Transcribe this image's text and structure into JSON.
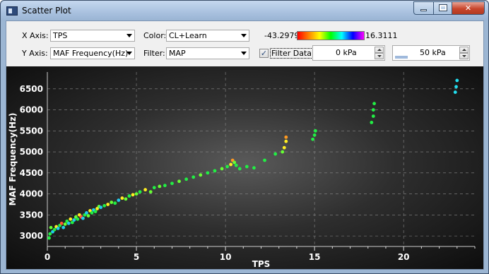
{
  "window": {
    "title": "Scatter Plot",
    "icon": "app-window-icon",
    "controls": [
      "minimize-icon",
      "maximize-icon",
      "close-icon"
    ]
  },
  "toolbar": {
    "x_axis_label": "X Axis:",
    "x_axis_value": "TPS",
    "y_axis_label": "Y Axis:",
    "y_axis_value": "MAF Frequency(Hz)",
    "color_label": "Color:",
    "color_value": "CL+Learn",
    "filter_label": "Filter:",
    "filter_value": "MAP",
    "color_scale_min": "-43.2979",
    "color_scale_max": "16.3111",
    "color_scale_colors": [
      "#ff0000",
      "#ff8000",
      "#ffff00",
      "#00ff00",
      "#00ffff",
      "#0000ff",
      "#ff00ff"
    ],
    "filter_data_label": "Filter Data",
    "filter_data_checked": true,
    "filter_min": "0 kPa",
    "filter_max": "50 kPa",
    "filter_max_fill_fraction": 0.2
  },
  "chart_data": {
    "type": "scatter",
    "xlabel": "TPS",
    "ylabel": "MAF Frequency(Hz)",
    "xlim": [
      0,
      24
    ],
    "ylim": [
      2750,
      6900
    ],
    "x_ticks": [
      0,
      5,
      10,
      15,
      20
    ],
    "y_ticks": [
      3000,
      3500,
      4000,
      4500,
      5000,
      5500,
      6000,
      6500
    ],
    "grid": true,
    "background": "dark",
    "points": [
      {
        "x": 0.1,
        "y": 2950,
        "c": "#22ee44"
      },
      {
        "x": 0.15,
        "y": 3050,
        "c": "#22ee44"
      },
      {
        "x": 0.2,
        "y": 3200,
        "c": "#66ff33"
      },
      {
        "x": 0.3,
        "y": 3100,
        "c": "#22ccee"
      },
      {
        "x": 0.4,
        "y": 3150,
        "c": "#22ee44"
      },
      {
        "x": 0.5,
        "y": 3220,
        "c": "#ffee22"
      },
      {
        "x": 0.6,
        "y": 3180,
        "c": "#22ccee"
      },
      {
        "x": 0.7,
        "y": 3250,
        "c": "#22ee44"
      },
      {
        "x": 0.8,
        "y": 3300,
        "c": "#ff5533"
      },
      {
        "x": 0.9,
        "y": 3200,
        "c": "#22ccee"
      },
      {
        "x": 1.0,
        "y": 3280,
        "c": "#66ff33"
      },
      {
        "x": 1.1,
        "y": 3350,
        "c": "#22ee44"
      },
      {
        "x": 1.2,
        "y": 3300,
        "c": "#22ccee"
      },
      {
        "x": 1.3,
        "y": 3400,
        "c": "#ffee22"
      },
      {
        "x": 1.4,
        "y": 3320,
        "c": "#22ee44"
      },
      {
        "x": 1.5,
        "y": 3380,
        "c": "#22ccee"
      },
      {
        "x": 1.6,
        "y": 3450,
        "c": "#66ff33"
      },
      {
        "x": 1.7,
        "y": 3400,
        "c": "#22ee44"
      },
      {
        "x": 1.8,
        "y": 3500,
        "c": "#ffee22"
      },
      {
        "x": 1.9,
        "y": 3450,
        "c": "#ff5533"
      },
      {
        "x": 2.0,
        "y": 3420,
        "c": "#22ccee"
      },
      {
        "x": 2.1,
        "y": 3500,
        "c": "#22ee44"
      },
      {
        "x": 2.2,
        "y": 3550,
        "c": "#22ccee"
      },
      {
        "x": 2.3,
        "y": 3480,
        "c": "#66ff33"
      },
      {
        "x": 2.4,
        "y": 3600,
        "c": "#ffee22"
      },
      {
        "x": 2.5,
        "y": 3550,
        "c": "#22ee44"
      },
      {
        "x": 2.6,
        "y": 3620,
        "c": "#22ccee"
      },
      {
        "x": 2.7,
        "y": 3580,
        "c": "#22ee44"
      },
      {
        "x": 2.8,
        "y": 3650,
        "c": "#ffee22"
      },
      {
        "x": 2.9,
        "y": 3700,
        "c": "#66ff33"
      },
      {
        "x": 3.0,
        "y": 3680,
        "c": "#22ccee"
      },
      {
        "x": 3.2,
        "y": 3720,
        "c": "#22ee44"
      },
      {
        "x": 3.4,
        "y": 3750,
        "c": "#ffee22"
      },
      {
        "x": 3.6,
        "y": 3800,
        "c": "#66ff33"
      },
      {
        "x": 3.8,
        "y": 3780,
        "c": "#22ee44"
      },
      {
        "x": 4.0,
        "y": 3850,
        "c": "#22ccee"
      },
      {
        "x": 4.2,
        "y": 3900,
        "c": "#ffee22"
      },
      {
        "x": 4.4,
        "y": 3880,
        "c": "#66ff33"
      },
      {
        "x": 4.6,
        "y": 3950,
        "c": "#22ee44"
      },
      {
        "x": 4.8,
        "y": 3980,
        "c": "#ffee22"
      },
      {
        "x": 5.0,
        "y": 4000,
        "c": "#66ff33"
      },
      {
        "x": 5.2,
        "y": 4050,
        "c": "#22ee44"
      },
      {
        "x": 5.5,
        "y": 4100,
        "c": "#ffee22"
      },
      {
        "x": 5.8,
        "y": 4050,
        "c": "#66ff33"
      },
      {
        "x": 6.0,
        "y": 4150,
        "c": "#22ee44"
      },
      {
        "x": 6.3,
        "y": 4180,
        "c": "#66ff33"
      },
      {
        "x": 6.6,
        "y": 4200,
        "c": "#22ee44"
      },
      {
        "x": 7.0,
        "y": 4250,
        "c": "#22ee44"
      },
      {
        "x": 7.4,
        "y": 4300,
        "c": "#66ff33"
      },
      {
        "x": 7.8,
        "y": 4350,
        "c": "#22ee44"
      },
      {
        "x": 8.2,
        "y": 4400,
        "c": "#22ee44"
      },
      {
        "x": 8.6,
        "y": 4450,
        "c": "#66ff33"
      },
      {
        "x": 9.0,
        "y": 4500,
        "c": "#22ee44"
      },
      {
        "x": 9.4,
        "y": 4550,
        "c": "#22ee44"
      },
      {
        "x": 9.8,
        "y": 4600,
        "c": "#66ff33"
      },
      {
        "x": 10.1,
        "y": 4650,
        "c": "#22ee44"
      },
      {
        "x": 10.3,
        "y": 4700,
        "c": "#ffee22"
      },
      {
        "x": 10.4,
        "y": 4800,
        "c": "#ff9922"
      },
      {
        "x": 10.5,
        "y": 4750,
        "c": "#66ff33"
      },
      {
        "x": 10.6,
        "y": 4680,
        "c": "#22ee44"
      },
      {
        "x": 10.8,
        "y": 4600,
        "c": "#22ee44"
      },
      {
        "x": 11.2,
        "y": 4650,
        "c": "#22ee44"
      },
      {
        "x": 11.6,
        "y": 4620,
        "c": "#22ee44"
      },
      {
        "x": 12.2,
        "y": 4800,
        "c": "#22ee44"
      },
      {
        "x": 12.8,
        "y": 4950,
        "c": "#22ee44"
      },
      {
        "x": 13.2,
        "y": 5000,
        "c": "#66ff33"
      },
      {
        "x": 13.3,
        "y": 5100,
        "c": "#ffee22"
      },
      {
        "x": 13.4,
        "y": 5250,
        "c": "#ffee22"
      },
      {
        "x": 13.4,
        "y": 5350,
        "c": "#ff9922"
      },
      {
        "x": 14.9,
        "y": 5300,
        "c": "#22ee44"
      },
      {
        "x": 15.0,
        "y": 5400,
        "c": "#22ee44"
      },
      {
        "x": 15.05,
        "y": 5500,
        "c": "#22ee44"
      },
      {
        "x": 18.2,
        "y": 5700,
        "c": "#22ee44"
      },
      {
        "x": 18.3,
        "y": 5850,
        "c": "#22ee44"
      },
      {
        "x": 18.3,
        "y": 6000,
        "c": "#22ee44"
      },
      {
        "x": 18.35,
        "y": 6150,
        "c": "#22ee44"
      },
      {
        "x": 22.9,
        "y": 6420,
        "c": "#22ddee"
      },
      {
        "x": 22.95,
        "y": 6550,
        "c": "#22ddee"
      },
      {
        "x": 23.0,
        "y": 6700,
        "c": "#22ddee"
      }
    ]
  }
}
